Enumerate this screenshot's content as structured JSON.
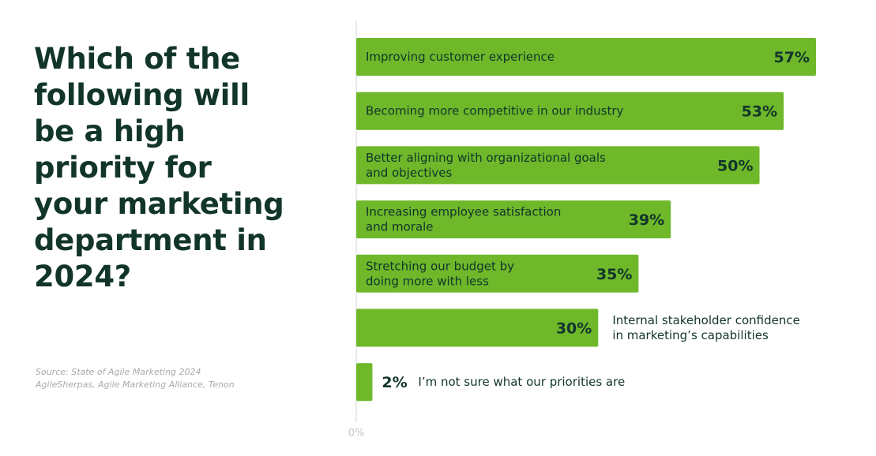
{
  "title": "Which of the following will be a high priority for your marketing department in 2024?",
  "source_lines": [
    "Source: State of Agile Marketing 2024",
    "AgileSherpas, Agile Marketing Alliance, Tenon"
  ],
  "colors": {
    "bar": "#6eb82a",
    "text": "#12352b",
    "axis": "#d3d4d5",
    "muted": "#a7a9ab"
  },
  "chart_data": {
    "type": "bar",
    "orientation": "horizontal",
    "categories": [
      "Improving customer experience",
      "Becoming more competitive in our industry",
      "Better aligning with organizational goals and objectives",
      "Increasing employee satisfaction and morale",
      "Stretching our budget by doing more with less",
      "Internal stakeholder confidence in marketing’s capabilities",
      "I’m not sure what our priorities are"
    ],
    "values": [
      57,
      53,
      50,
      39,
      35,
      30,
      2
    ],
    "value_labels": [
      "57%",
      "53%",
      "50%",
      "39%",
      "35%",
      "30%",
      "2%"
    ],
    "label_lines": [
      [
        "Improving customer experience"
      ],
      [
        "Becoming more competitive in our industry"
      ],
      [
        "Better aligning with organizational goals",
        "and objectives"
      ],
      [
        "Increasing employee satisfaction",
        "and morale"
      ],
      [
        "Stretching our budget by",
        "doing more with less"
      ],
      [
        "Internal stakeholder confidence",
        "in marketing’s capabilities"
      ],
      [
        "I’m not sure what our priorities are"
      ]
    ],
    "label_inside": [
      true,
      true,
      true,
      true,
      true,
      false,
      false
    ],
    "x_tick": "0%",
    "xlim": [
      0,
      60
    ],
    "grid": false
  }
}
